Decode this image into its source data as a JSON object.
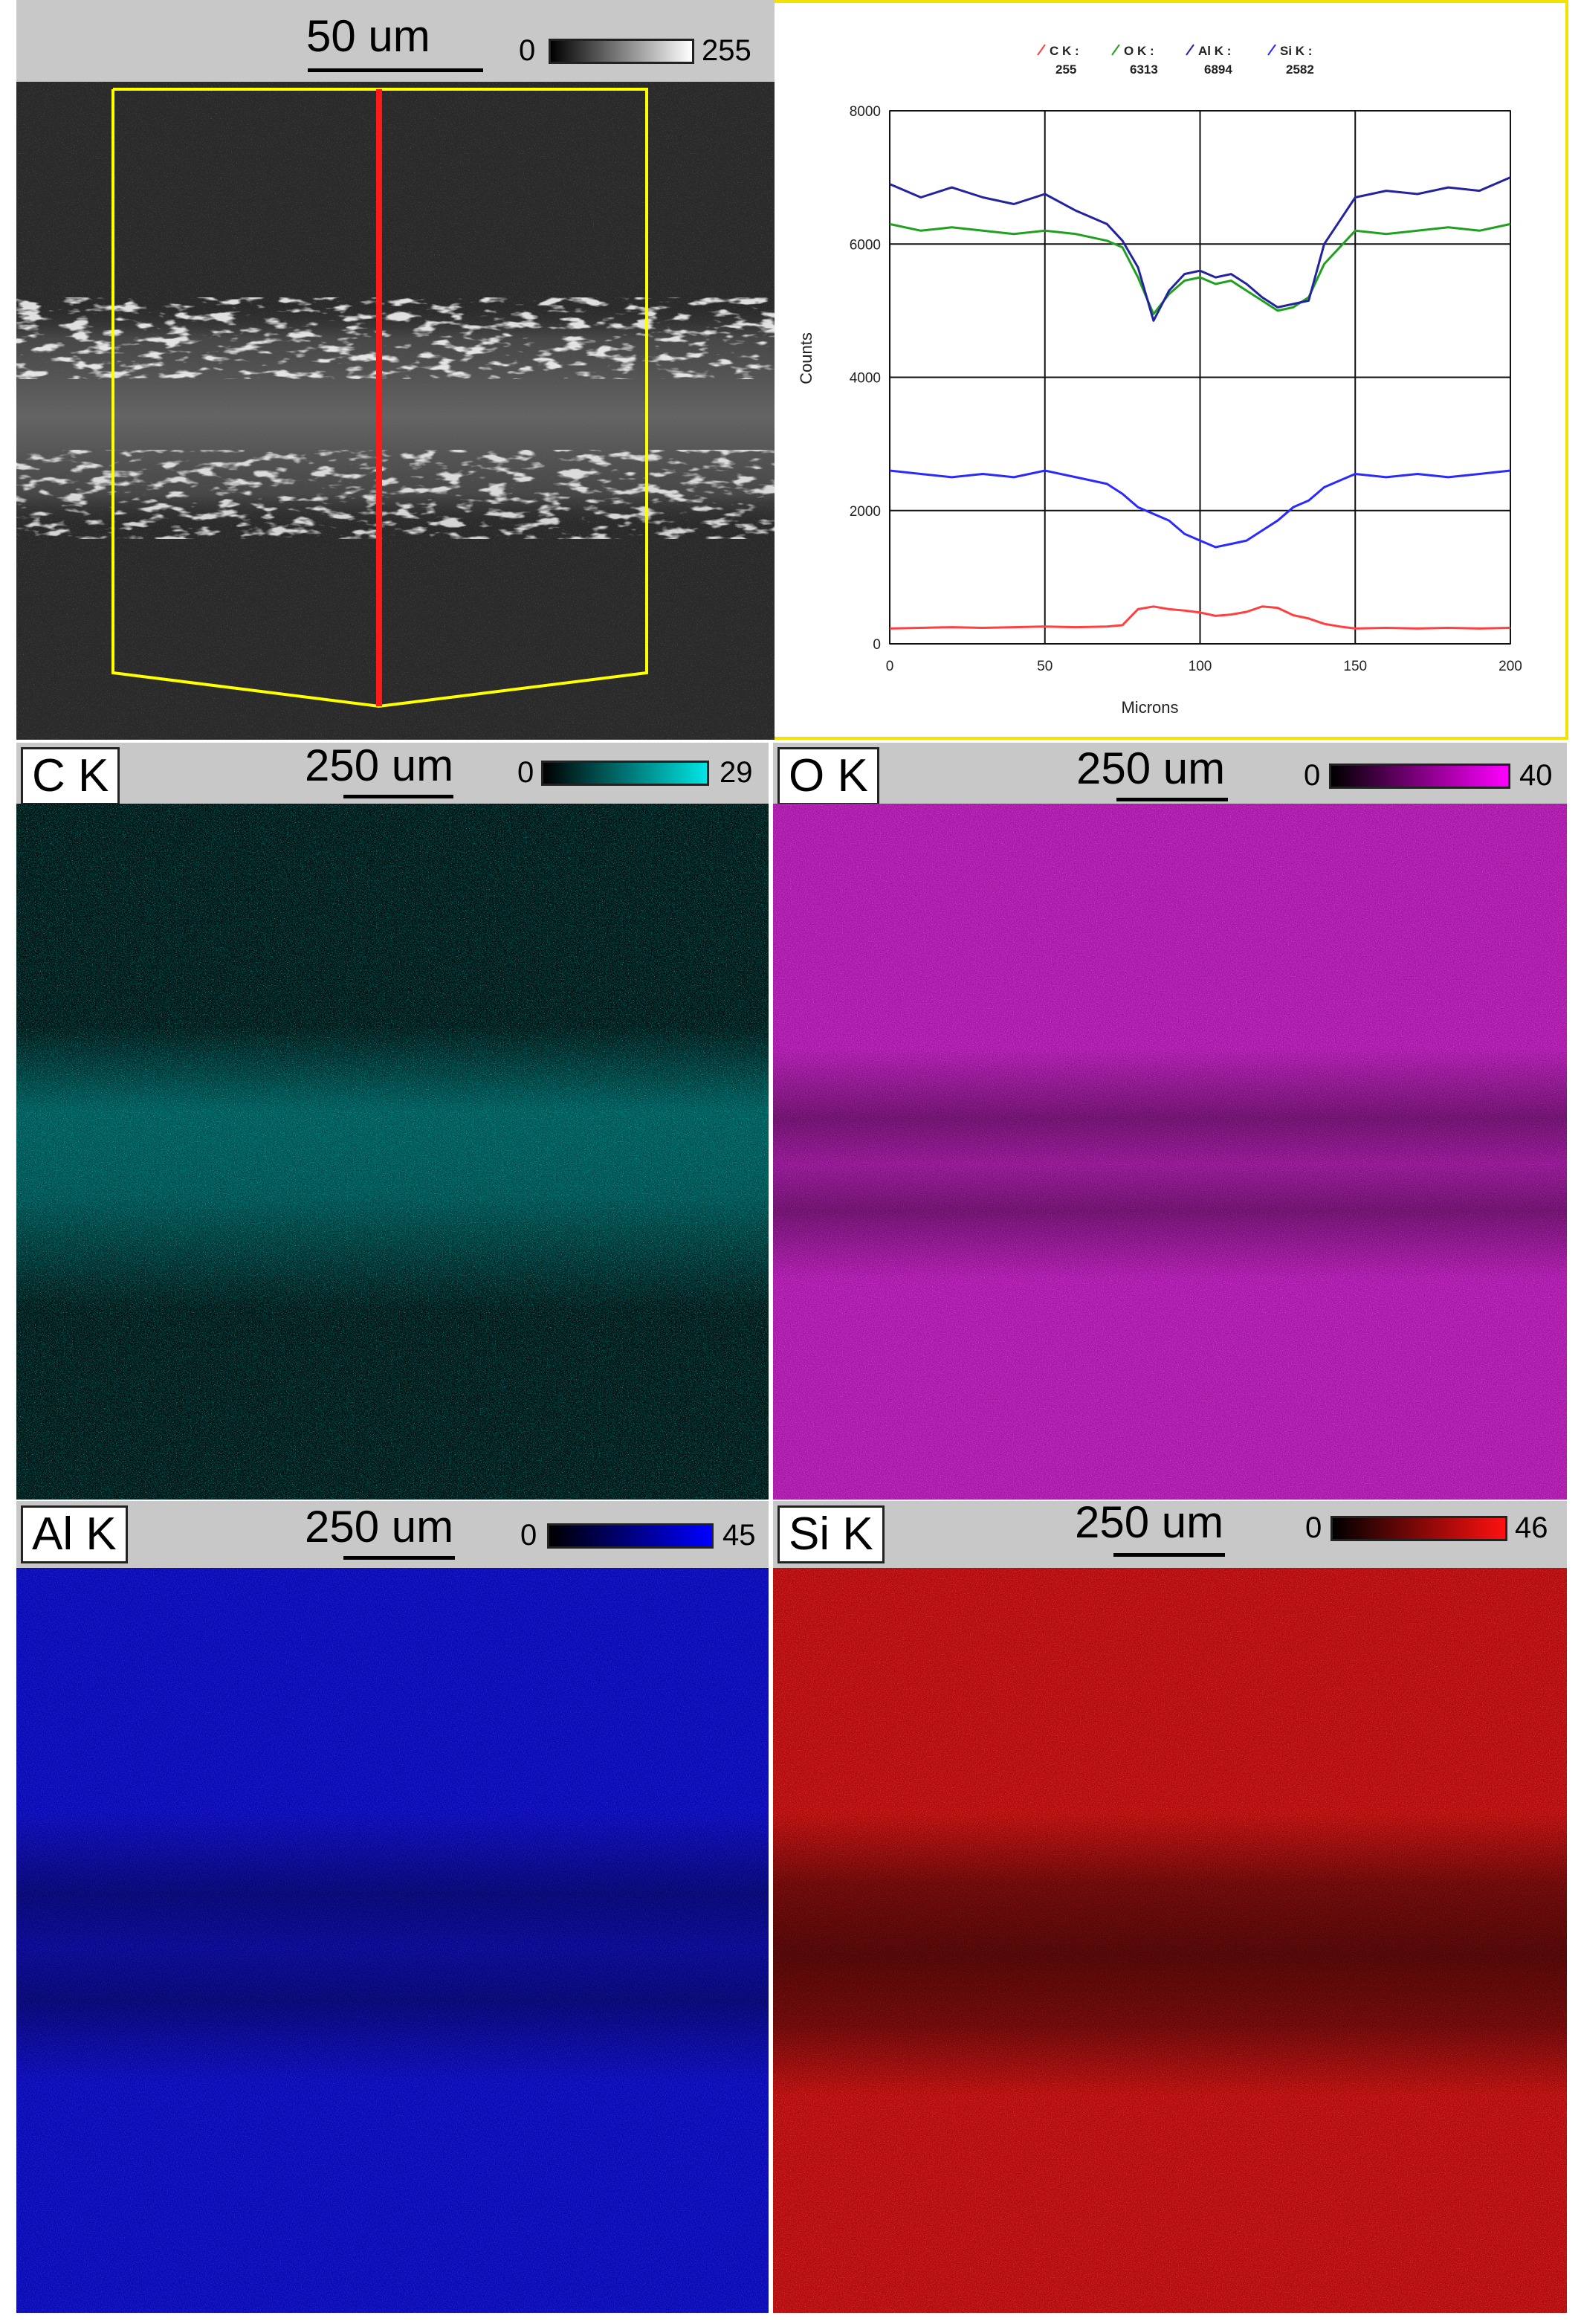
{
  "line_scan": {
    "scale_label": "50 um",
    "colorbar_min": "0",
    "colorbar_max": "255"
  },
  "maps": [
    {
      "element": "C K",
      "scale_label": "250 um",
      "colorbar_min": "0",
      "colorbar_max": "29",
      "color": "#00e5e5",
      "base": "#031716"
    },
    {
      "element": "O K",
      "scale_label": "250 um",
      "colorbar_min": "0",
      "colorbar_max": "40",
      "color": "#d400d4",
      "base": "#7a127a"
    },
    {
      "element": "Al K",
      "scale_label": "250 um",
      "colorbar_min": "0",
      "colorbar_max": "45",
      "color": "#0000ff",
      "base": "#0a0a8a"
    },
    {
      "element": "Si K",
      "scale_label": "250 um",
      "colorbar_min": "0",
      "colorbar_max": "46",
      "color": "#ff1010",
      "base": "#8a0808"
    }
  ],
  "chart_data": {
    "type": "line",
    "xlabel": "Microns",
    "ylabel": "Counts",
    "xlim": [
      0,
      200
    ],
    "ylim": [
      0,
      8000
    ],
    "xticks": [
      "0",
      "50",
      "100",
      "150",
      "200"
    ],
    "yticks": [
      "0",
      "2000",
      "4000",
      "6000",
      "8000"
    ],
    "grid": true,
    "legend_position": "top",
    "legend": [
      {
        "name": "C K :",
        "value": "255",
        "color": "#ff4040"
      },
      {
        "name": "O K :",
        "value": "6313",
        "color": "#1fa01f"
      },
      {
        "name": "Al K :",
        "value": "6894",
        "color": "#2323a0"
      },
      {
        "name": "Si K :",
        "value": "2582",
        "color": "#2a2aff"
      }
    ],
    "series": [
      {
        "name": "C K",
        "color": "#ff4040",
        "x": [
          0,
          10,
          20,
          30,
          40,
          50,
          60,
          70,
          75,
          80,
          85,
          90,
          95,
          100,
          105,
          110,
          115,
          120,
          125,
          130,
          135,
          140,
          145,
          150,
          160,
          170,
          180,
          190,
          200
        ],
        "y": [
          230,
          240,
          250,
          240,
          250,
          260,
          250,
          260,
          280,
          520,
          560,
          520,
          500,
          470,
          420,
          440,
          480,
          560,
          540,
          430,
          380,
          300,
          260,
          230,
          240,
          230,
          240,
          230,
          240
        ]
      },
      {
        "name": "O K",
        "color": "#1fa01f",
        "x": [
          0,
          10,
          20,
          30,
          40,
          50,
          60,
          70,
          75,
          80,
          85,
          90,
          95,
          100,
          105,
          110,
          115,
          120,
          125,
          130,
          135,
          140,
          145,
          150,
          160,
          170,
          180,
          190,
          200
        ],
        "y": [
          6300,
          6200,
          6250,
          6200,
          6150,
          6200,
          6150,
          6050,
          5950,
          5500,
          4950,
          5250,
          5450,
          5500,
          5400,
          5450,
          5300,
          5150,
          5000,
          5050,
          5200,
          5700,
          5950,
          6200,
          6150,
          6200,
          6250,
          6200,
          6300
        ]
      },
      {
        "name": "Al K",
        "color": "#2323a0",
        "x": [
          0,
          10,
          20,
          30,
          40,
          50,
          60,
          70,
          75,
          80,
          85,
          90,
          95,
          100,
          105,
          110,
          115,
          120,
          125,
          130,
          135,
          140,
          145,
          150,
          160,
          170,
          180,
          190,
          200
        ],
        "y": [
          6900,
          6700,
          6850,
          6700,
          6600,
          6750,
          6500,
          6300,
          6050,
          5650,
          4850,
          5300,
          5550,
          5600,
          5500,
          5550,
          5400,
          5200,
          5050,
          5100,
          5150,
          6000,
          6350,
          6700,
          6800,
          6750,
          6850,
          6800,
          7000
        ]
      },
      {
        "name": "Si K",
        "color": "#2a2aff",
        "x": [
          0,
          10,
          20,
          30,
          40,
          50,
          60,
          70,
          75,
          80,
          85,
          90,
          95,
          100,
          105,
          110,
          115,
          120,
          125,
          130,
          135,
          140,
          145,
          150,
          160,
          170,
          180,
          190,
          200
        ],
        "y": [
          2600,
          2550,
          2500,
          2550,
          2500,
          2600,
          2500,
          2400,
          2250,
          2050,
          1950,
          1850,
          1650,
          1550,
          1450,
          1500,
          1550,
          1700,
          1850,
          2050,
          2150,
          2350,
          2450,
          2550,
          2500,
          2550,
          2500,
          2550,
          2600
        ]
      }
    ]
  }
}
